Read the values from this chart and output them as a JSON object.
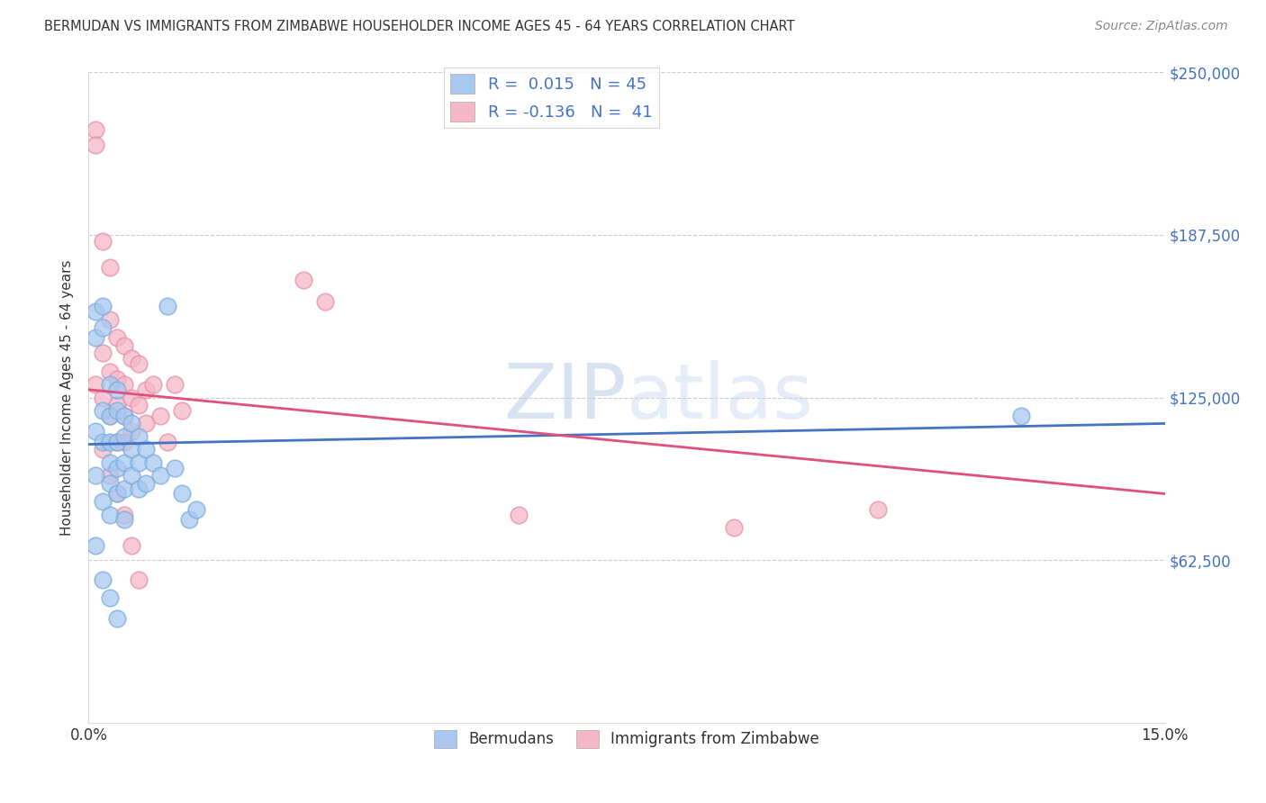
{
  "title": "BERMUDAN VS IMMIGRANTS FROM ZIMBABWE HOUSEHOLDER INCOME AGES 45 - 64 YEARS CORRELATION CHART",
  "source": "Source: ZipAtlas.com",
  "ylabel": "Householder Income Ages 45 - 64 years",
  "xmin": 0.0,
  "xmax": 0.15,
  "ymin": 0,
  "ymax": 250000,
  "yticks": [
    0,
    62500,
    125000,
    187500,
    250000
  ],
  "ytick_labels": [
    "",
    "$62,500",
    "$125,000",
    "$187,500",
    "$250,000"
  ],
  "xticks": [
    0.0,
    0.03,
    0.06,
    0.09,
    0.12,
    0.15
  ],
  "xtick_labels": [
    "0.0%",
    "",
    "",
    "",
    "",
    "15.0%"
  ],
  "grid_color": "#cccccc",
  "series1_name": "Bermudans",
  "series1_color": "#a8c8f0",
  "series1_edge_color": "#7aaede",
  "series1_line_color": "#4472c4",
  "series1_R": 0.015,
  "series1_N": 45,
  "series2_name": "Immigrants from Zimbabwe",
  "series2_color": "#f4b8c8",
  "series2_edge_color": "#e890a8",
  "series2_line_color": "#e0507a",
  "series2_R": -0.136,
  "series2_N": 41,
  "blue_line_x0": 0.0,
  "blue_line_y0": 107000,
  "blue_line_x1": 0.15,
  "blue_line_y1": 115000,
  "pink_line_x0": 0.0,
  "pink_line_y0": 128000,
  "pink_line_x1": 0.15,
  "pink_line_y1": 88000,
  "bermudans_x": [
    0.001,
    0.001,
    0.001,
    0.001,
    0.001,
    0.002,
    0.002,
    0.002,
    0.002,
    0.002,
    0.003,
    0.003,
    0.003,
    0.003,
    0.003,
    0.003,
    0.004,
    0.004,
    0.004,
    0.004,
    0.004,
    0.005,
    0.005,
    0.005,
    0.005,
    0.005,
    0.006,
    0.006,
    0.006,
    0.007,
    0.007,
    0.007,
    0.008,
    0.008,
    0.009,
    0.01,
    0.011,
    0.012,
    0.013,
    0.014,
    0.002,
    0.003,
    0.004,
    0.13,
    0.015
  ],
  "bermudans_y": [
    158000,
    148000,
    112000,
    95000,
    68000,
    160000,
    152000,
    120000,
    108000,
    85000,
    130000,
    118000,
    108000,
    100000,
    92000,
    80000,
    128000,
    120000,
    108000,
    98000,
    88000,
    118000,
    110000,
    100000,
    90000,
    78000,
    115000,
    105000,
    95000,
    110000,
    100000,
    90000,
    105000,
    92000,
    100000,
    95000,
    160000,
    98000,
    88000,
    78000,
    55000,
    48000,
    40000,
    118000,
    82000
  ],
  "zimbabwe_x": [
    0.001,
    0.001,
    0.001,
    0.002,
    0.002,
    0.002,
    0.003,
    0.003,
    0.003,
    0.003,
    0.004,
    0.004,
    0.004,
    0.004,
    0.005,
    0.005,
    0.005,
    0.006,
    0.006,
    0.006,
    0.007,
    0.007,
    0.008,
    0.008,
    0.009,
    0.01,
    0.011,
    0.012,
    0.013,
    0.03,
    0.033,
    0.002,
    0.003,
    0.004,
    0.005,
    0.006,
    0.007,
    0.06,
    0.09,
    0.11,
    0.005
  ],
  "zimbabwe_y": [
    228000,
    222000,
    130000,
    185000,
    142000,
    125000,
    175000,
    155000,
    135000,
    118000,
    148000,
    132000,
    122000,
    108000,
    145000,
    130000,
    118000,
    140000,
    125000,
    112000,
    138000,
    122000,
    128000,
    115000,
    130000,
    118000,
    108000,
    130000,
    120000,
    170000,
    162000,
    105000,
    95000,
    88000,
    80000,
    68000,
    55000,
    80000,
    75000,
    82000,
    108000
  ]
}
